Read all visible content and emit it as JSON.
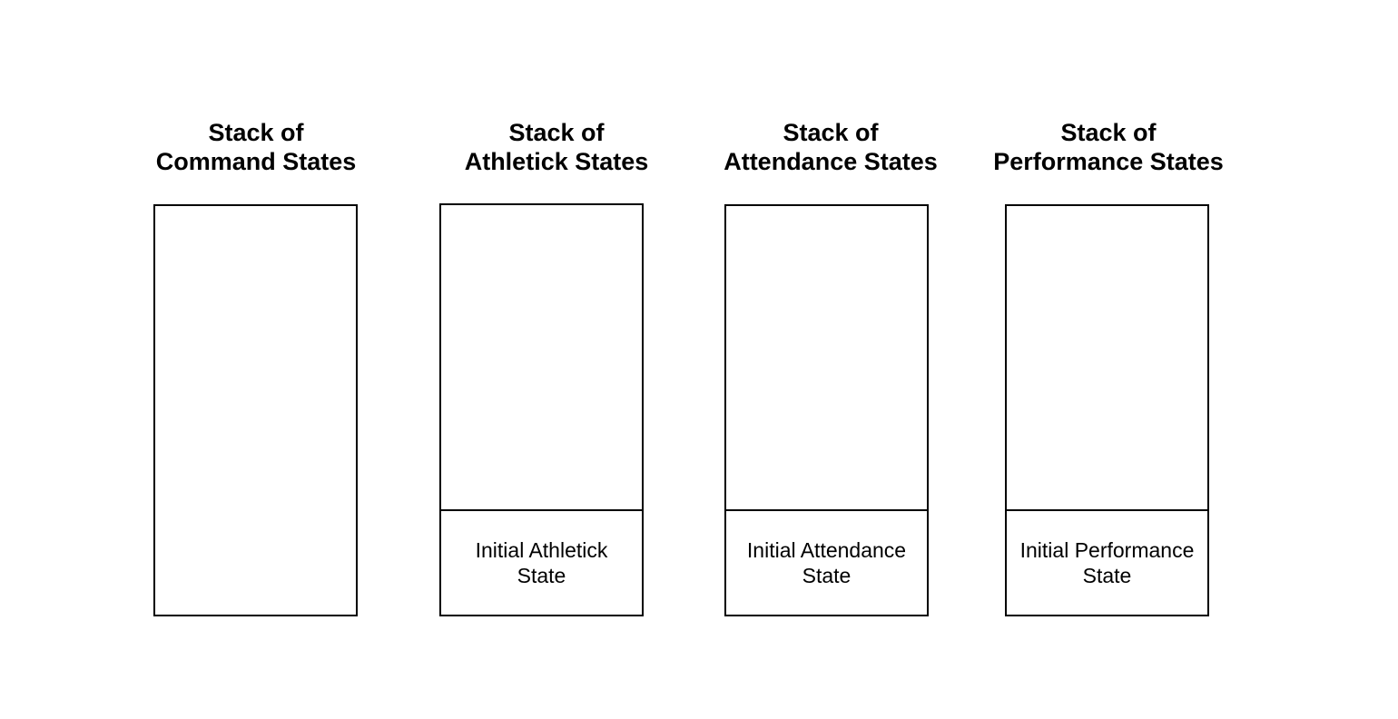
{
  "stacks": [
    {
      "title_line1": "Stack of",
      "title_line2": "Command States",
      "item_line1": "",
      "item_line2": ""
    },
    {
      "title_line1": "Stack of",
      "title_line2": "Athletick States",
      "item_line1": "Initial Athletick",
      "item_line2": "State"
    },
    {
      "title_line1": "Stack of",
      "title_line2": "Attendance States",
      "item_line1": "Initial Attendance",
      "item_line2": "State"
    },
    {
      "title_line1": "Stack of",
      "title_line2": "Performance States",
      "item_line1": "Initial Performance",
      "item_line2": "State"
    }
  ]
}
